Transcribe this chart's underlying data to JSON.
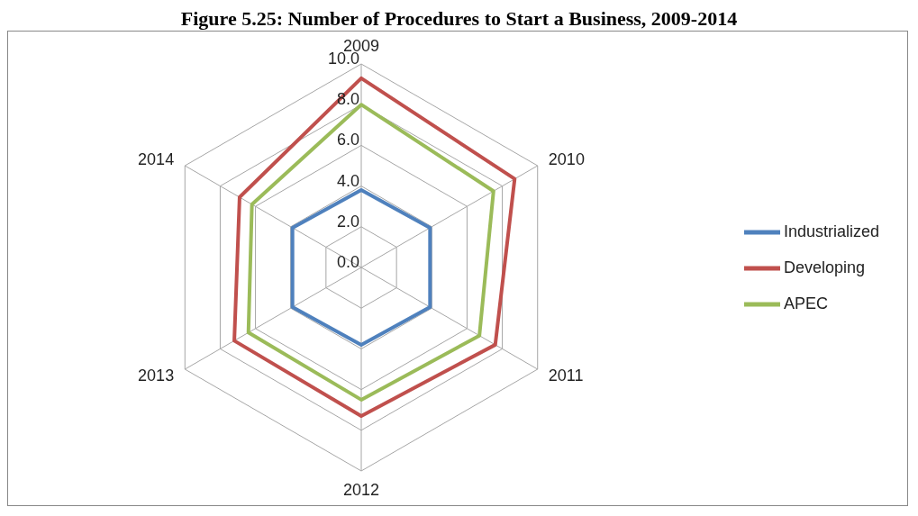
{
  "chart_data": {
    "type": "radar",
    "title": "Figure 5.25: Number of Procedures to Start a Business, 2009-2014",
    "categories": [
      "2009",
      "2010",
      "2011",
      "2012",
      "2013",
      "2014"
    ],
    "series": [
      {
        "name": "Industrialized",
        "color": "#4f81bd",
        "values": [
          3.8,
          3.9,
          3.9,
          3.8,
          3.9,
          3.9
        ]
      },
      {
        "name": "Developing",
        "color": "#c0504d",
        "values": [
          9.3,
          8.7,
          7.6,
          7.3,
          7.2,
          6.9
        ]
      },
      {
        "name": "APEC",
        "color": "#9bbb59",
        "values": [
          8.0,
          7.5,
          6.7,
          6.5,
          6.4,
          6.2
        ]
      }
    ],
    "ylim": [
      0,
      10
    ],
    "yticks": [
      {
        "value": 0,
        "label": "0.0"
      },
      {
        "value": 2,
        "label": "2.0"
      },
      {
        "value": 4,
        "label": "4.0"
      },
      {
        "value": 6,
        "label": "6.0"
      },
      {
        "value": 8,
        "label": "8.0"
      },
      {
        "value": 10,
        "label": "10.0"
      }
    ],
    "grid": true,
    "legend": "right"
  }
}
